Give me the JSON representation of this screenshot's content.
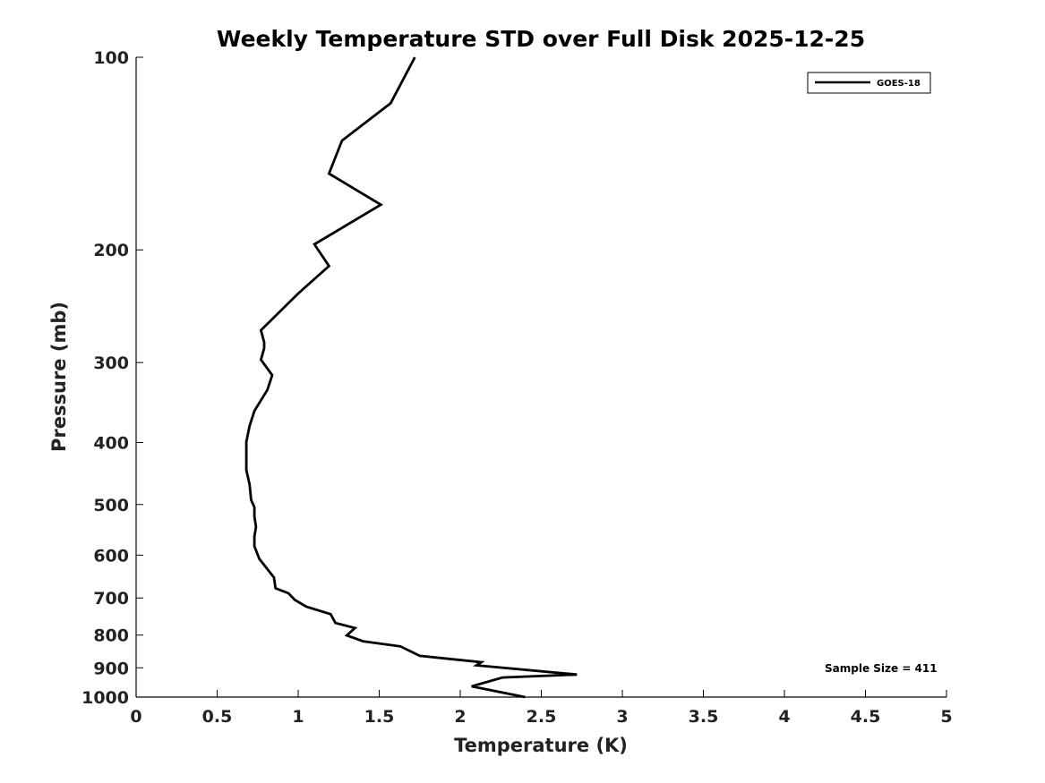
{
  "chart_data": {
    "type": "line",
    "title": "Weekly Temperature STD over Full Disk 2025-12-25",
    "xlabel": "Temperature (K)",
    "ylabel": "Pressure (mb)",
    "xlim": [
      0,
      5
    ],
    "ylim": [
      100,
      1000
    ],
    "y_scale": "log",
    "y_reversed": true,
    "grid": false,
    "legend_position": "top-right",
    "x_ticks": [
      0,
      0.5,
      1,
      1.5,
      2,
      2.5,
      3,
      3.5,
      4,
      4.5,
      5
    ],
    "x_tick_labels": [
      "0",
      "0.5",
      "1",
      "1.5",
      "2",
      "2.5",
      "3",
      "3.5",
      "4",
      "4.5",
      "5"
    ],
    "y_ticks": [
      100,
      200,
      300,
      400,
      500,
      600,
      700,
      800,
      900,
      1000
    ],
    "y_tick_labels": [
      "100",
      "200",
      "300",
      "400",
      "500",
      "600",
      "700",
      "800",
      "900",
      "1000"
    ],
    "series": [
      {
        "name": "GOES-18",
        "color": "#000000",
        "points": [
          [
            1.72,
            100
          ],
          [
            1.57,
            118
          ],
          [
            1.27,
            135
          ],
          [
            1.19,
            152
          ],
          [
            1.51,
            170
          ],
          [
            1.1,
            196
          ],
          [
            1.19,
            212
          ],
          [
            1.0,
            234
          ],
          [
            0.77,
            267
          ],
          [
            0.79,
            279
          ],
          [
            0.79,
            285
          ],
          [
            0.77,
            297
          ],
          [
            0.84,
            314
          ],
          [
            0.81,
            331
          ],
          [
            0.73,
            357
          ],
          [
            0.7,
            377
          ],
          [
            0.68,
            399
          ],
          [
            0.68,
            424
          ],
          [
            0.68,
            442
          ],
          [
            0.7,
            465
          ],
          [
            0.71,
            492
          ],
          [
            0.73,
            505
          ],
          [
            0.73,
            522
          ],
          [
            0.74,
            542
          ],
          [
            0.73,
            561
          ],
          [
            0.73,
            581
          ],
          [
            0.76,
            608
          ],
          [
            0.81,
            631
          ],
          [
            0.85,
            650
          ],
          [
            0.86,
            676
          ],
          [
            0.94,
            688
          ],
          [
            0.98,
            705
          ],
          [
            1.05,
            722
          ],
          [
            1.2,
            742
          ],
          [
            1.23,
            766
          ],
          [
            1.35,
            780
          ],
          [
            1.3,
            801
          ],
          [
            1.4,
            818
          ],
          [
            1.63,
            833
          ],
          [
            1.75,
            862
          ],
          [
            2.13,
            882
          ],
          [
            2.1,
            892
          ],
          [
            2.72,
            922
          ],
          [
            2.26,
            932
          ],
          [
            2.07,
            962
          ],
          [
            2.4,
            1000
          ]
        ]
      }
    ],
    "legend": [
      "GOES-18"
    ],
    "annotation": "Sample Size = 411"
  }
}
